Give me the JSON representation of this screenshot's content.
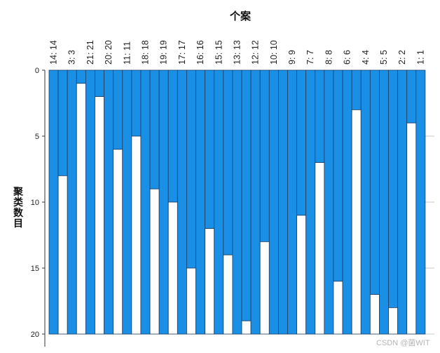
{
  "chart_data": {
    "type": "icicle",
    "title": "个案",
    "ylabel": "聚类数目",
    "yticks": [
      0,
      5,
      10,
      15,
      20
    ],
    "ylim": [
      0,
      20
    ],
    "categories": [
      "14: 14",
      "3: 3",
      "21: 21",
      "20: 20",
      "11: 11",
      "18: 18",
      "19: 19",
      "17: 17",
      "16: 16",
      "15: 15",
      "13: 13",
      "12: 12",
      "10: 10",
      "9: 9",
      "7: 7",
      "8: 8",
      "6: 6",
      "4: 4",
      "5: 5",
      "2: 2",
      "1: 1"
    ],
    "gaps": [
      8,
      1,
      2,
      6,
      5,
      9,
      10,
      15,
      12,
      14,
      19,
      13,
      20,
      11,
      7,
      16,
      3,
      17,
      18,
      4
    ],
    "fill_color": "#1a8fe6",
    "edge_color": "#1d3d66"
  },
  "watermark": "CSDN @菌WIT"
}
